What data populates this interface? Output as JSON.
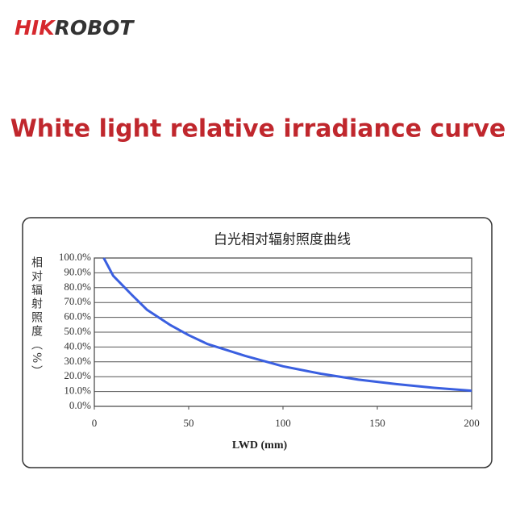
{
  "header": {
    "logo": [
      "HIK",
      "ROBOT"
    ],
    "title": "White light relative irradiance curve"
  },
  "chart_data": {
    "type": "line",
    "title": "白光相对辐射照度曲线",
    "y_label": "相对辐射照度（%）",
    "x_label": "LWD (mm)",
    "x": [
      5,
      10,
      20,
      28,
      40,
      50,
      60,
      80,
      100,
      120,
      140,
      160,
      180,
      200
    ],
    "values": [
      100,
      88,
      75,
      65,
      55,
      48,
      42,
      34,
      27,
      22,
      18,
      15,
      12.5,
      10.5
    ],
    "color": "#3a5fe0",
    "xlim": [
      0,
      200
    ],
    "xticks": [
      0,
      50,
      100,
      150,
      200
    ],
    "ylim": [
      0,
      100
    ],
    "yticks": [
      {
        "value": 0,
        "label": "0.0%"
      },
      {
        "value": 10,
        "label": "10.0%"
      },
      {
        "value": 20,
        "label": "20.0%"
      },
      {
        "value": 30,
        "label": "30.0%"
      },
      {
        "value": 40,
        "label": "40.0%"
      },
      {
        "value": 50,
        "label": "50.0%"
      },
      {
        "value": 60,
        "label": "60.0%"
      },
      {
        "value": 70,
        "label": "70.0%"
      },
      {
        "value": 80,
        "label": "80.0%"
      },
      {
        "value": 90,
        "label": "90.0%"
      },
      {
        "value": 100,
        "label": "100.0%"
      }
    ],
    "grid": true
  }
}
